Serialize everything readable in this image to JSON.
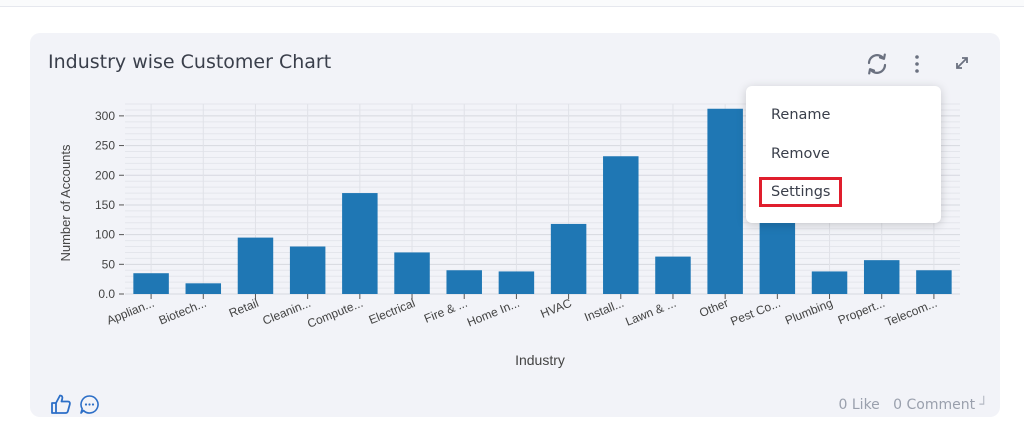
{
  "card": {
    "title": "Industry wise Customer Chart"
  },
  "toolbar": {
    "refresh_icon": "refresh-icon",
    "more_icon": "more-vertical-icon",
    "expand_icon": "expand-icon"
  },
  "menu": {
    "items": [
      "Rename",
      "Remove",
      "Settings"
    ],
    "highlighted": "Settings"
  },
  "footer": {
    "like_label": "0 Like",
    "comment_label": "0 Comment",
    "like_icon": "thumbs-up-icon",
    "comment_icon": "comment-icon"
  },
  "colors": {
    "bar": "#1f77b4",
    "highlight": "#e01e2d",
    "card_bg": "#f2f3f8"
  },
  "chart_data": {
    "type": "bar",
    "categories": [
      "Applian...",
      "Biotech...",
      "Retail",
      "Cleanin...",
      "Compute...",
      "Electrical",
      "Fire & ...",
      "Home In...",
      "HVAC",
      "Install...",
      "Lawn & ...",
      "Other",
      "Pest Co...",
      "Plumbing",
      "Propert...",
      "Telecom..."
    ],
    "values": [
      35,
      18,
      95,
      80,
      170,
      70,
      40,
      38,
      118,
      232,
      63,
      312,
      120,
      38,
      57,
      40
    ],
    "xlabel": "Industry",
    "ylabel": "Number of Accounts",
    "yticks": [
      "0.0",
      "50",
      "100",
      "150",
      "200",
      "250",
      "300"
    ],
    "ylim": [
      0,
      320
    ],
    "grid": true,
    "legend": "none"
  }
}
